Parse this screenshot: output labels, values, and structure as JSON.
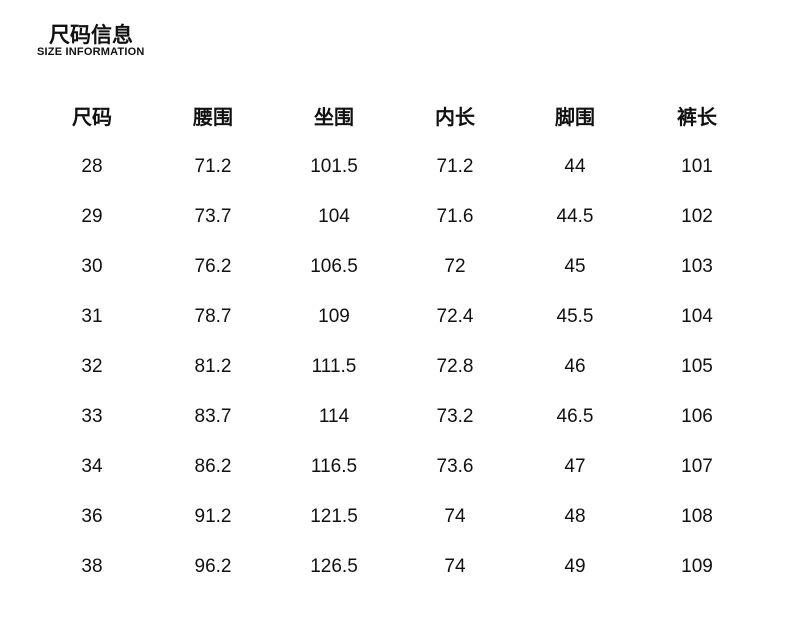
{
  "header": {
    "title": "尺码信息",
    "subtitle": "SIZE INFORMATION"
  },
  "table": {
    "columns": [
      "尺码",
      "腰围",
      "坐围",
      "内长",
      "脚围",
      "裤长"
    ],
    "rows": [
      [
        "28",
        "71.2",
        "101.5",
        "71.2",
        "44",
        "101"
      ],
      [
        "29",
        "73.7",
        "104",
        "71.6",
        "44.5",
        "102"
      ],
      [
        "30",
        "76.2",
        "106.5",
        "72",
        "45",
        "103"
      ],
      [
        "31",
        "78.7",
        "109",
        "72.4",
        "45.5",
        "104"
      ],
      [
        "32",
        "81.2",
        "111.5",
        "72.8",
        "46",
        "105"
      ],
      [
        "33",
        "83.7",
        "114",
        "73.2",
        "46.5",
        "106"
      ],
      [
        "34",
        "86.2",
        "116.5",
        "73.6",
        "47",
        "107"
      ],
      [
        "36",
        "91.2",
        "121.5",
        "74",
        "48",
        "108"
      ],
      [
        "38",
        "96.2",
        "126.5",
        "74",
        "49",
        "109"
      ]
    ]
  }
}
